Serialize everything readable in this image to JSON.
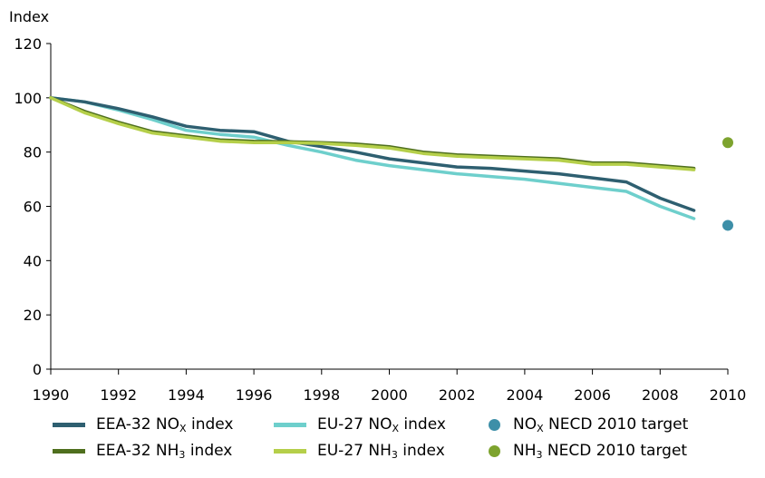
{
  "chart_data": {
    "type": "line",
    "ylabel": "Index",
    "xlabel": "",
    "xlim": [
      1990,
      2010
    ],
    "ylim": [
      0,
      120
    ],
    "x_ticks": [
      "1990",
      "1992",
      "1994",
      "1996",
      "1998",
      "2000",
      "2002",
      "2004",
      "2006",
      "2008",
      "2010"
    ],
    "y_ticks": [
      "0",
      "20",
      "40",
      "60",
      "80",
      "100",
      "120"
    ],
    "grid": false,
    "legend_position": "bottom",
    "series": [
      {
        "key": "eea_nox",
        "label_main": "EEA-32 NO",
        "label_sub": "X",
        "label_tail": " index",
        "color": "#2e5f70",
        "x": [
          1990,
          1991,
          1992,
          1993,
          1994,
          1995,
          1996,
          1997,
          1998,
          1999,
          2000,
          2001,
          2002,
          2003,
          2004,
          2005,
          2006,
          2007,
          2008,
          2009
        ],
        "values": [
          100,
          98.5,
          96,
          93,
          89.5,
          88,
          87.5,
          84,
          82,
          80,
          77.5,
          76,
          74.5,
          74,
          73,
          72,
          70.5,
          69,
          63,
          58.5
        ]
      },
      {
        "key": "eu_nox",
        "label_main": "EU-27 NO",
        "label_sub": "X",
        "label_tail": " index",
        "color": "#6ecfcc",
        "x": [
          1990,
          1991,
          1992,
          1993,
          1994,
          1995,
          1996,
          1997,
          1998,
          1999,
          2000,
          2001,
          2002,
          2003,
          2004,
          2005,
          2006,
          2007,
          2008,
          2009
        ],
        "values": [
          100,
          98.5,
          95.5,
          92,
          88,
          86.5,
          85.5,
          82.5,
          80,
          77,
          75,
          73.5,
          72,
          71,
          70,
          68.5,
          67,
          65.5,
          60,
          55.5
        ]
      },
      {
        "key": "eea_nh3",
        "label_main": "EEA-32 NH",
        "label_sub": "3",
        "label_tail": " index",
        "color": "#4f6f1e",
        "x": [
          1990,
          1991,
          1992,
          1993,
          1994,
          1995,
          1996,
          1997,
          1998,
          1999,
          2000,
          2001,
          2002,
          2003,
          2004,
          2005,
          2006,
          2007,
          2008,
          2009
        ],
        "values": [
          100,
          95,
          91,
          87.5,
          86,
          84.5,
          84,
          83.8,
          83.5,
          83,
          82,
          80,
          79,
          78.5,
          78,
          77.5,
          76,
          76,
          75,
          74
        ]
      },
      {
        "key": "eu_nh3",
        "label_main": "EU-27 NH",
        "label_sub": "3",
        "label_tail": " index",
        "color": "#b5cf4a",
        "x": [
          1990,
          1991,
          1992,
          1993,
          1994,
          1995,
          1996,
          1997,
          1998,
          1999,
          2000,
          2001,
          2002,
          2003,
          2004,
          2005,
          2006,
          2007,
          2008,
          2009
        ],
        "values": [
          100,
          94.5,
          90.5,
          87,
          85.5,
          84,
          83.5,
          83.5,
          83.2,
          82.5,
          81.5,
          79.5,
          78.5,
          78,
          77.5,
          77,
          75.5,
          75.5,
          74.5,
          73.5
        ]
      }
    ],
    "targets": [
      {
        "key": "nox_target",
        "label_main": "NO",
        "label_sub": "X",
        "label_tail": " NECD 2010 target",
        "color": "#3d8fa8",
        "x": 2010,
        "value": 53
      },
      {
        "key": "nh3_target",
        "label_main": "NH",
        "label_sub": "3",
        "label_tail": " NECD 2010 target",
        "color": "#7da32e",
        "x": 2010,
        "value": 83.5
      }
    ]
  }
}
